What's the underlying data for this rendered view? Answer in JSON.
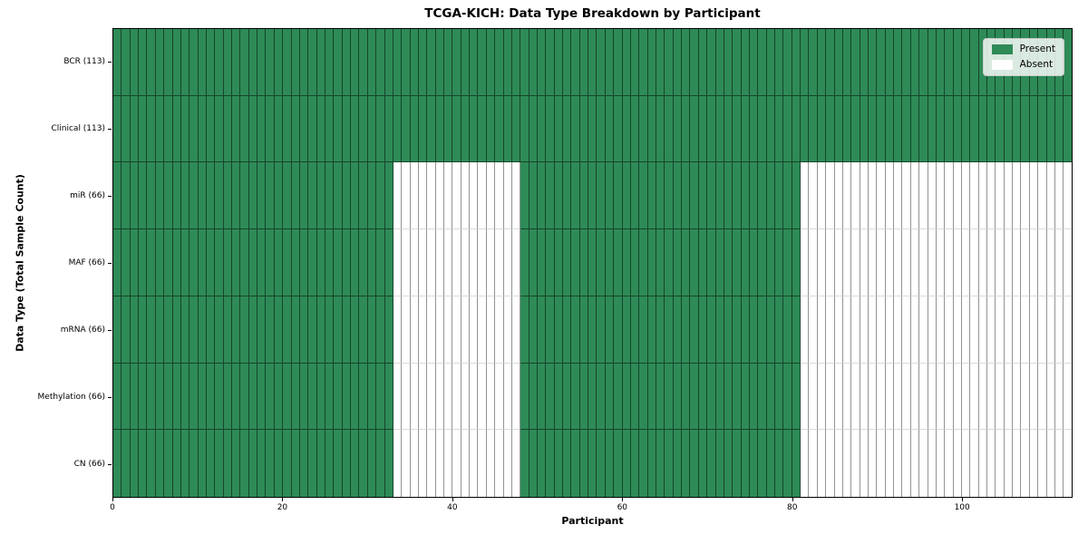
{
  "chart_data": {
    "type": "heatmap",
    "title": "TCGA-KICH: Data Type Breakdown by Participant",
    "xlabel": "Participant",
    "ylabel": "Data Type (Total Sample Count)",
    "x_ticks": [
      0,
      20,
      40,
      60,
      80,
      100
    ],
    "x_range": [
      0,
      113
    ],
    "n_participants": 113,
    "grid": "cell-edges",
    "legend_position": "upper-right",
    "colors": {
      "present": "#2e8b57",
      "absent": "#ffffff"
    },
    "legend": [
      {
        "key": "present",
        "label": "Present"
      },
      {
        "key": "absent",
        "label": "Absent"
      }
    ],
    "rows": [
      {
        "label": "BCR (113)",
        "total": 113,
        "present_ranges": [
          [
            0,
            113
          ]
        ]
      },
      {
        "label": "Clinical (113)",
        "total": 113,
        "present_ranges": [
          [
            0,
            113
          ]
        ]
      },
      {
        "label": "miR (66)",
        "total": 66,
        "present_ranges": [
          [
            0,
            33
          ],
          [
            48,
            81
          ]
        ]
      },
      {
        "label": "MAF (66)",
        "total": 66,
        "present_ranges": [
          [
            0,
            33
          ],
          [
            48,
            81
          ]
        ]
      },
      {
        "label": "mRNA (66)",
        "total": 66,
        "present_ranges": [
          [
            0,
            33
          ],
          [
            48,
            81
          ]
        ]
      },
      {
        "label": "Methylation (66)",
        "total": 66,
        "present_ranges": [
          [
            0,
            33
          ],
          [
            48,
            81
          ]
        ]
      },
      {
        "label": "CN (66)",
        "total": 66,
        "present_ranges": [
          [
            0,
            33
          ],
          [
            48,
            81
          ]
        ]
      }
    ]
  }
}
